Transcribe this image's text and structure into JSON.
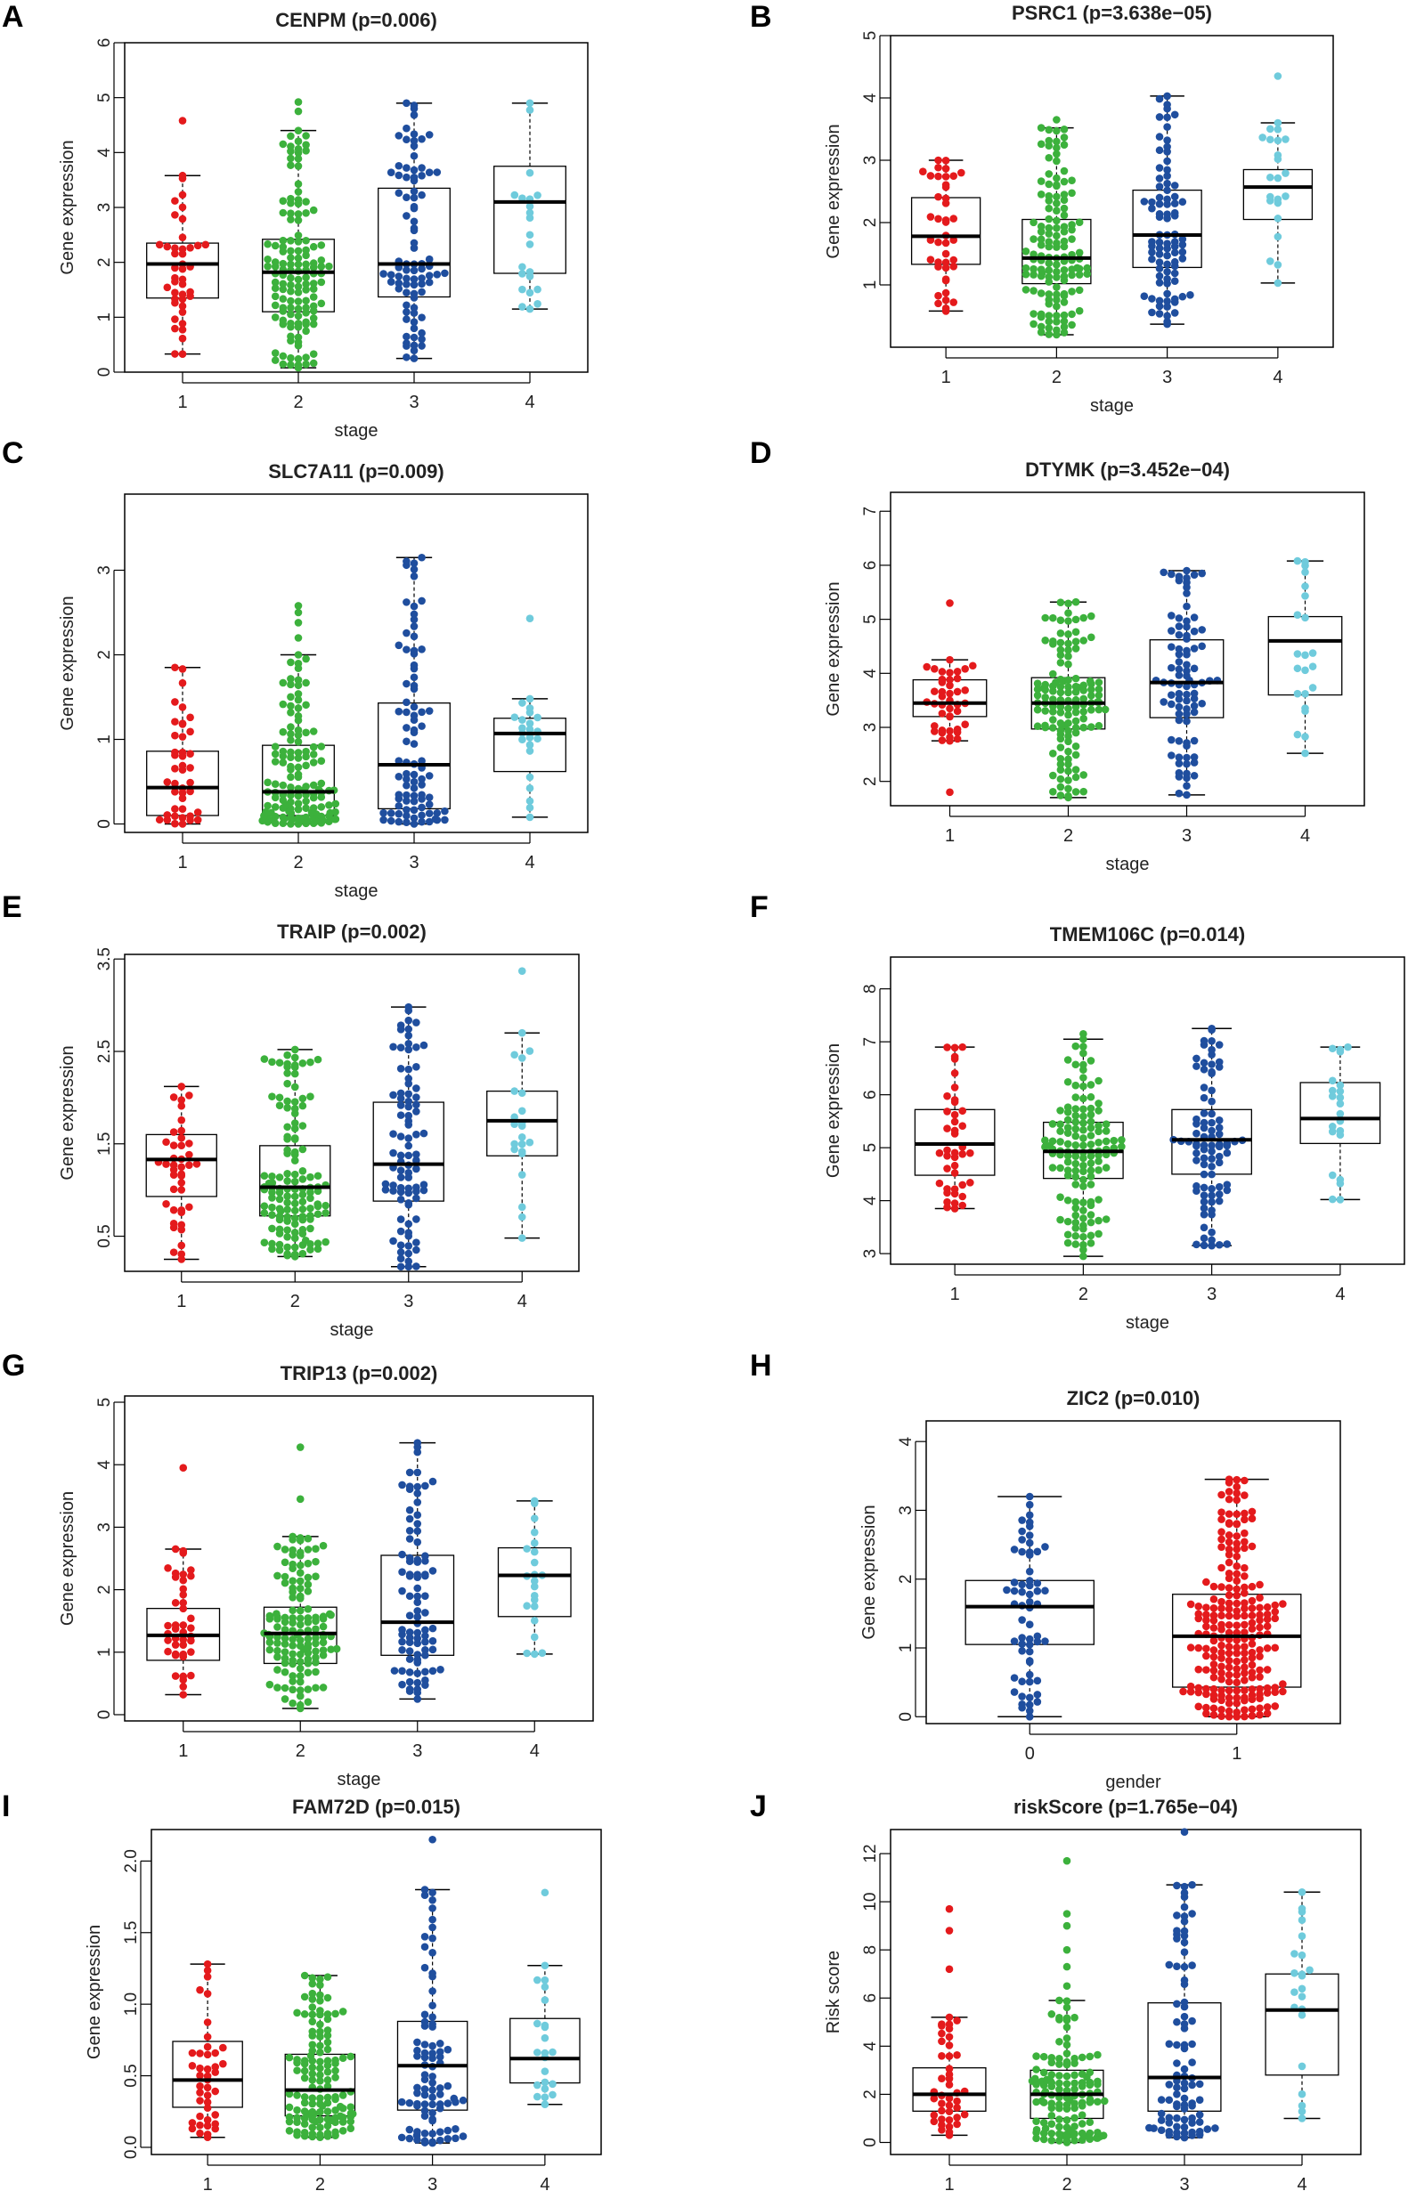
{
  "figure": {
    "background": "#ffffff"
  },
  "colors": {
    "1": "#e41a1c",
    "2": "#3cb13c",
    "3": "#1f4e9e",
    "4": "#6fcbdc",
    "box": "#000000"
  },
  "chart_data": [
    {
      "panel": "A",
      "type": "box",
      "title": "CENPM (p=0.006)",
      "xlabel": "stage",
      "ylabel": "Gene expression",
      "categories": [
        "1",
        "2",
        "3",
        "4"
      ],
      "ylim": [
        0,
        6
      ],
      "yticks": [
        0,
        1,
        2,
        3,
        4,
        5,
        6
      ],
      "ytick_labels": [
        "0",
        "1",
        "2",
        "3",
        "4",
        "5",
        "6"
      ],
      "boxes": [
        {
          "group": "1",
          "color_key": "1",
          "n": 40,
          "min": 0.33,
          "q1": 1.35,
          "median": 1.97,
          "q3": 2.35,
          "max": 3.58,
          "outliers": [
            4.58
          ]
        },
        {
          "group": "2",
          "color_key": "2",
          "n": 130,
          "min": 0.08,
          "q1": 1.1,
          "median": 1.82,
          "q3": 2.42,
          "max": 4.4,
          "outliers": [
            4.75,
            4.92
          ]
        },
        {
          "group": "3",
          "color_key": "3",
          "n": 85,
          "min": 0.25,
          "q1": 1.37,
          "median": 1.97,
          "q3": 3.35,
          "max": 4.9,
          "outliers": []
        },
        {
          "group": "4",
          "color_key": "4",
          "n": 20,
          "min": 1.15,
          "q1": 1.8,
          "median": 3.1,
          "q3": 3.75,
          "max": 4.9,
          "outliers": []
        }
      ]
    },
    {
      "panel": "B",
      "type": "box",
      "title": "PSRC1 (p=3.638e−05)",
      "xlabel": "stage",
      "ylabel": "Gene expression",
      "categories": [
        "1",
        "2",
        "3",
        "4"
      ],
      "ylim": [
        0,
        5
      ],
      "yticks": [
        1,
        2,
        3,
        4,
        5
      ],
      "ytick_labels": [
        "1",
        "2",
        "3",
        "4",
        "5"
      ],
      "boxes": [
        {
          "group": "1",
          "color_key": "1",
          "n": 40,
          "min": 0.58,
          "q1": 1.33,
          "median": 1.78,
          "q3": 2.4,
          "max": 3.0,
          "outliers": []
        },
        {
          "group": "2",
          "color_key": "2",
          "n": 130,
          "min": 0.2,
          "q1": 1.02,
          "median": 1.43,
          "q3": 2.05,
          "max": 3.52,
          "outliers": [
            3.65
          ]
        },
        {
          "group": "3",
          "color_key": "3",
          "n": 85,
          "min": 0.37,
          "q1": 1.28,
          "median": 1.8,
          "q3": 2.52,
          "max": 4.03,
          "outliers": []
        },
        {
          "group": "4",
          "color_key": "4",
          "n": 20,
          "min": 1.03,
          "q1": 2.05,
          "median": 2.57,
          "q3": 2.85,
          "max": 3.6,
          "outliers": [
            4.35
          ]
        }
      ]
    },
    {
      "panel": "C",
      "type": "box",
      "title": "SLC7A11 (p=0.009)",
      "xlabel": "stage",
      "ylabel": "Gene expression",
      "categories": [
        "1",
        "2",
        "3",
        "4"
      ],
      "ylim": [
        -0.1,
        3.9
      ],
      "yticks": [
        0,
        1,
        2,
        3
      ],
      "ytick_labels": [
        "0",
        "1",
        "2",
        "3"
      ],
      "boxes": [
        {
          "group": "1",
          "color_key": "1",
          "n": 40,
          "min": 0.0,
          "q1": 0.1,
          "median": 0.43,
          "q3": 0.86,
          "max": 1.85,
          "outliers": []
        },
        {
          "group": "2",
          "color_key": "2",
          "n": 130,
          "min": 0.0,
          "q1": 0.1,
          "median": 0.38,
          "q3": 0.93,
          "max": 2.0,
          "outliers": [
            2.2,
            2.38,
            2.5,
            2.58
          ]
        },
        {
          "group": "3",
          "color_key": "3",
          "n": 85,
          "min": 0.0,
          "q1": 0.18,
          "median": 0.7,
          "q3": 1.43,
          "max": 3.15,
          "outliers": []
        },
        {
          "group": "4",
          "color_key": "4",
          "n": 20,
          "min": 0.08,
          "q1": 0.62,
          "median": 1.07,
          "q3": 1.25,
          "max": 1.48,
          "outliers": [
            2.43
          ]
        }
      ]
    },
    {
      "panel": "D",
      "type": "box",
      "title": "DTYMK (p=3.452e−04)",
      "xlabel": "stage",
      "ylabel": "Gene expression",
      "categories": [
        "1",
        "2",
        "3",
        "4"
      ],
      "ylim": [
        1.55,
        7.35
      ],
      "yticks": [
        2,
        3,
        4,
        5,
        6,
        7
      ],
      "ytick_labels": [
        "2",
        "3",
        "4",
        "5",
        "6",
        "7"
      ],
      "boxes": [
        {
          "group": "1",
          "color_key": "1",
          "n": 40,
          "min": 2.75,
          "q1": 3.2,
          "median": 3.45,
          "q3": 3.88,
          "max": 4.25,
          "outliers": [
            1.8,
            5.3
          ]
        },
        {
          "group": "2",
          "color_key": "2",
          "n": 130,
          "min": 1.7,
          "q1": 2.97,
          "median": 3.45,
          "q3": 3.92,
          "max": 5.32,
          "outliers": []
        },
        {
          "group": "3",
          "color_key": "3",
          "n": 85,
          "min": 1.75,
          "q1": 3.18,
          "median": 3.83,
          "q3": 4.62,
          "max": 5.9,
          "outliers": []
        },
        {
          "group": "4",
          "color_key": "4",
          "n": 20,
          "min": 2.52,
          "q1": 3.6,
          "median": 4.6,
          "q3": 5.05,
          "max": 6.08,
          "outliers": []
        }
      ]
    },
    {
      "panel": "E",
      "type": "box",
      "title": "TRAIP (p=0.002)",
      "xlabel": "stage",
      "ylabel": "Gene expression",
      "categories": [
        "1",
        "2",
        "3",
        "4"
      ],
      "ylim": [
        0.12,
        3.55
      ],
      "yticks": [
        0.5,
        1.5,
        2.5,
        3.5
      ],
      "ytick_labels": [
        "0.5",
        "1.5",
        "2.5",
        "3.5"
      ],
      "boxes": [
        {
          "group": "1",
          "color_key": "1",
          "n": 40,
          "min": 0.25,
          "q1": 0.93,
          "median": 1.33,
          "q3": 1.6,
          "max": 2.12,
          "outliers": []
        },
        {
          "group": "2",
          "color_key": "2",
          "n": 130,
          "min": 0.28,
          "q1": 0.72,
          "median": 1.03,
          "q3": 1.48,
          "max": 2.52,
          "outliers": []
        },
        {
          "group": "3",
          "color_key": "3",
          "n": 85,
          "min": 0.17,
          "q1": 0.88,
          "median": 1.28,
          "q3": 1.95,
          "max": 2.98,
          "outliers": []
        },
        {
          "group": "4",
          "color_key": "4",
          "n": 20,
          "min": 0.48,
          "q1": 1.37,
          "median": 1.75,
          "q3": 2.07,
          "max": 2.7,
          "outliers": [
            3.37
          ]
        }
      ]
    },
    {
      "panel": "F",
      "type": "box",
      "title": "TMEM106C (p=0.014)",
      "xlabel": "stage",
      "ylabel": "Gene expression",
      "categories": [
        "1",
        "2",
        "3",
        "4"
      ],
      "ylim": [
        2.8,
        8.6
      ],
      "yticks": [
        3,
        4,
        5,
        6,
        7,
        8
      ],
      "ytick_labels": [
        "3",
        "4",
        "5",
        "6",
        "7",
        "8"
      ],
      "boxes": [
        {
          "group": "1",
          "color_key": "1",
          "n": 40,
          "min": 3.85,
          "q1": 4.48,
          "median": 5.07,
          "q3": 5.72,
          "max": 6.9,
          "outliers": []
        },
        {
          "group": "2",
          "color_key": "2",
          "n": 130,
          "min": 2.95,
          "q1": 4.42,
          "median": 4.93,
          "q3": 5.48,
          "max": 7.05,
          "outliers": [
            7.15
          ]
        },
        {
          "group": "3",
          "color_key": "3",
          "n": 85,
          "min": 3.15,
          "q1": 4.5,
          "median": 5.15,
          "q3": 5.72,
          "max": 7.25,
          "outliers": []
        },
        {
          "group": "4",
          "color_key": "4",
          "n": 20,
          "min": 4.02,
          "q1": 5.08,
          "median": 5.55,
          "q3": 6.23,
          "max": 6.9,
          "outliers": []
        }
      ]
    },
    {
      "panel": "G",
      "type": "box",
      "title": "TRIP13 (p=0.002)",
      "xlabel": "stage",
      "ylabel": "Gene expression",
      "categories": [
        "1",
        "2",
        "3",
        "4"
      ],
      "ylim": [
        -0.1,
        5.1
      ],
      "yticks": [
        0,
        1,
        2,
        3,
        4,
        5
      ],
      "ytick_labels": [
        "0",
        "1",
        "2",
        "3",
        "4",
        "5"
      ],
      "boxes": [
        {
          "group": "1",
          "color_key": "1",
          "n": 40,
          "min": 0.32,
          "q1": 0.87,
          "median": 1.27,
          "q3": 1.7,
          "max": 2.65,
          "outliers": [
            3.95
          ]
        },
        {
          "group": "2",
          "color_key": "2",
          "n": 130,
          "min": 0.1,
          "q1": 0.82,
          "median": 1.3,
          "q3": 1.72,
          "max": 2.85,
          "outliers": [
            3.45,
            4.28
          ]
        },
        {
          "group": "3",
          "color_key": "3",
          "n": 85,
          "min": 0.25,
          "q1": 0.95,
          "median": 1.48,
          "q3": 2.55,
          "max": 4.35,
          "outliers": []
        },
        {
          "group": "4",
          "color_key": "4",
          "n": 20,
          "min": 0.97,
          "q1": 1.57,
          "median": 2.23,
          "q3": 2.67,
          "max": 3.42,
          "outliers": []
        }
      ]
    },
    {
      "panel": "H",
      "type": "box",
      "title": "ZIC2 (p=0.010)",
      "xlabel": "gender",
      "ylabel": "Gene expression",
      "categories": [
        "0",
        "1"
      ],
      "ylim": [
        -0.1,
        4.3
      ],
      "yticks": [
        0,
        1,
        2,
        3,
        4
      ],
      "ytick_labels": [
        "0",
        "1",
        "2",
        "3",
        "4"
      ],
      "boxes": [
        {
          "group": "0",
          "color_key": "3",
          "n": 60,
          "min": 0.0,
          "q1": 1.05,
          "median": 1.6,
          "q3": 1.98,
          "max": 3.2,
          "outliers": []
        },
        {
          "group": "1",
          "color_key": "1",
          "n": 220,
          "min": 0.0,
          "q1": 0.43,
          "median": 1.17,
          "q3": 1.78,
          "max": 3.45,
          "outliers": []
        }
      ]
    },
    {
      "panel": "I",
      "type": "box",
      "title": "FAM72D (p=0.015)",
      "xlabel": "stage",
      "ylabel": "Gene expression",
      "categories": [
        "1",
        "2",
        "3",
        "4"
      ],
      "ylim": [
        -0.05,
        2.22
      ],
      "yticks": [
        0.0,
        0.5,
        1.0,
        1.5,
        2.0
      ],
      "ytick_labels": [
        "0.0",
        "0.5",
        "1.0",
        "1.5",
        "2.0"
      ],
      "boxes": [
        {
          "group": "1",
          "color_key": "1",
          "n": 40,
          "min": 0.07,
          "q1": 0.28,
          "median": 0.47,
          "q3": 0.74,
          "max": 1.28,
          "outliers": []
        },
        {
          "group": "2",
          "color_key": "2",
          "n": 130,
          "min": 0.07,
          "q1": 0.22,
          "median": 0.4,
          "q3": 0.65,
          "max": 1.2,
          "outliers": []
        },
        {
          "group": "3",
          "color_key": "3",
          "n": 85,
          "min": 0.03,
          "q1": 0.26,
          "median": 0.57,
          "q3": 0.88,
          "max": 1.8,
          "outliers": [
            2.15
          ]
        },
        {
          "group": "4",
          "color_key": "4",
          "n": 20,
          "min": 0.3,
          "q1": 0.45,
          "median": 0.62,
          "q3": 0.9,
          "max": 1.27,
          "outliers": [
            1.78
          ]
        }
      ]
    },
    {
      "panel": "J",
      "type": "box",
      "title": "riskScore (p=1.765e−04)",
      "xlabel": "stage",
      "ylabel": "Risk score",
      "categories": [
        "1",
        "2",
        "3",
        "4"
      ],
      "ylim": [
        -0.5,
        13.0
      ],
      "yticks": [
        0,
        2,
        4,
        6,
        8,
        10,
        12
      ],
      "ytick_labels": [
        "0",
        "2",
        "4",
        "6",
        "8",
        "10",
        "12"
      ],
      "boxes": [
        {
          "group": "1",
          "color_key": "1",
          "n": 40,
          "min": 0.3,
          "q1": 1.3,
          "median": 2.0,
          "q3": 3.1,
          "max": 5.2,
          "outliers": [
            7.2,
            8.8,
            9.7
          ]
        },
        {
          "group": "2",
          "color_key": "2",
          "n": 130,
          "min": 0.0,
          "q1": 1.0,
          "median": 2.0,
          "q3": 3.0,
          "max": 5.9,
          "outliers": [
            6.5,
            7.3,
            8.0,
            9.0,
            9.5,
            11.7
          ]
        },
        {
          "group": "3",
          "color_key": "3",
          "n": 85,
          "min": 0.2,
          "q1": 1.3,
          "median": 2.7,
          "q3": 5.8,
          "max": 10.7,
          "outliers": [
            12.9
          ]
        },
        {
          "group": "4",
          "color_key": "4",
          "n": 20,
          "min": 1.0,
          "q1": 2.8,
          "median": 5.5,
          "q3": 7.0,
          "max": 10.4,
          "outliers": []
        }
      ]
    }
  ]
}
